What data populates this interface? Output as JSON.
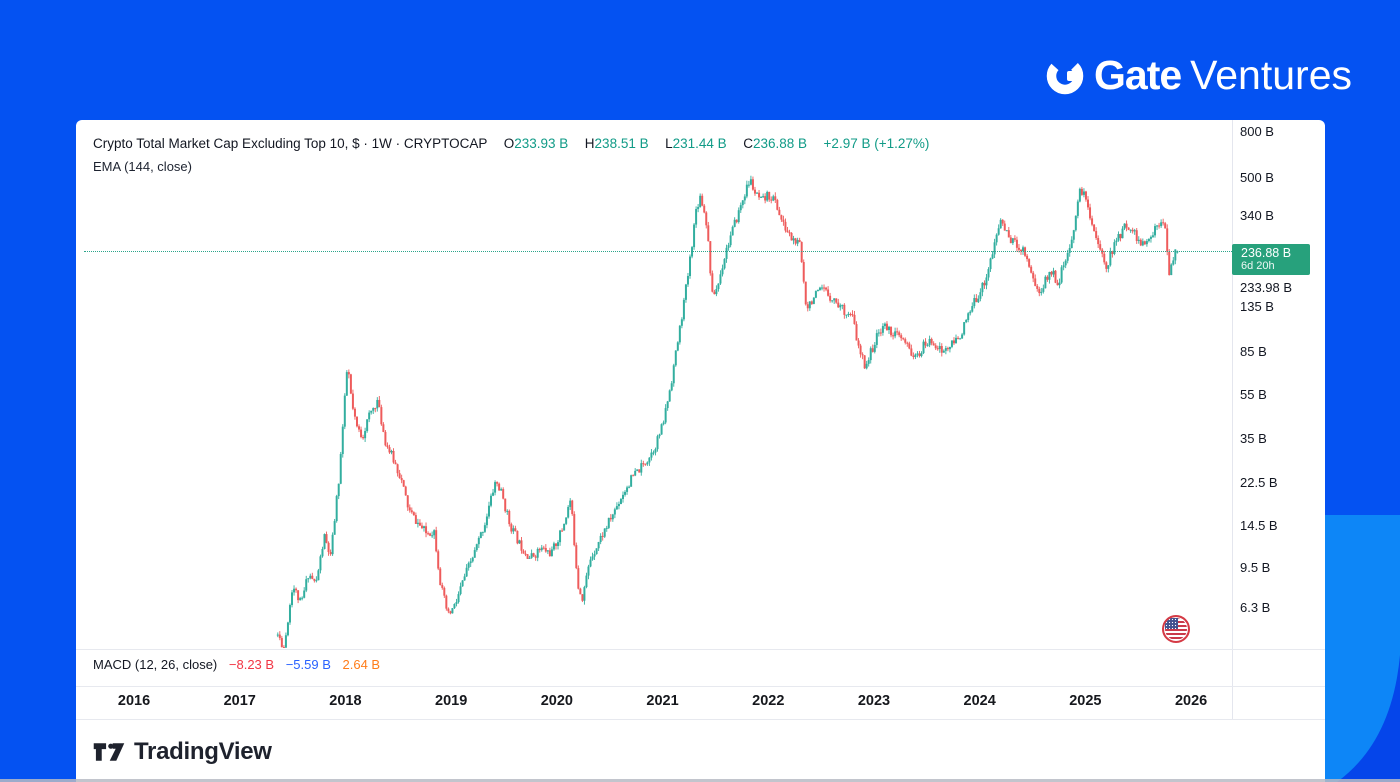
{
  "brand": {
    "bold": "Gate",
    "light": "Ventures"
  },
  "header": {
    "title": "Crypto Total Market Cap Excluding Top 10, $ · 1W · CRYPTOCAP",
    "ohlc": {
      "o_label": "O",
      "o": "233.93 B",
      "h_label": "H",
      "h": "238.51 B",
      "l_label": "L",
      "l": "231.44 B",
      "c_label": "C",
      "c": "236.88 B",
      "change": "+2.97 B (+1.27%)"
    },
    "ema_label": "EMA (144, close)"
  },
  "price_scale": {
    "badge": {
      "price": "236.88 B",
      "countdown": "6d 20h",
      "color": "#27a17c"
    },
    "ema_value": "233.98 B"
  },
  "macd": {
    "label": "MACD (12, 26, close)",
    "v1": "−8.23 B",
    "v1_color": "#f23645",
    "v2": "−5.59 B",
    "v2_color": "#2962ff",
    "v3": "2.64 B",
    "v3_color": "#ff7d1a"
  },
  "footer": {
    "logo_text": "TradingView"
  },
  "colors": {
    "up": "#32ae9f",
    "down": "#ee5b5b",
    "value_text": "#119b87",
    "bg_blue": "#0452f2",
    "bg_light_blue": "#0d86f7"
  },
  "chart_data": {
    "type": "candlestick",
    "title": "Crypto Total Market Cap Excluding Top 10",
    "symbol": "CRYPTOCAP",
    "timeframe": "1W",
    "currency": "$",
    "y_scale": "log",
    "grid": false,
    "ylim_billions": [
      4.15,
      900
    ],
    "xlim_years": [
      2015.451,
      2026.387
    ],
    "x_ticks": [
      "2016",
      "2017",
      "2018",
      "2019",
      "2020",
      "2021",
      "2022",
      "2023",
      "2024",
      "2025",
      "2026"
    ],
    "y_ticks": [
      {
        "label": "800 B",
        "v": 800
      },
      {
        "label": "500 B",
        "v": 500
      },
      {
        "label": "340 B",
        "v": 340
      },
      {
        "label": "135 B",
        "v": 135
      },
      {
        "label": "85 B",
        "v": 85
      },
      {
        "label": "55 B",
        "v": 55
      },
      {
        "label": "35 B",
        "v": 35
      },
      {
        "label": "22.5 B",
        "v": 22.5
      },
      {
        "label": "14.5 B",
        "v": 14.5
      },
      {
        "label": "9.5 B",
        "v": 9.5
      },
      {
        "label": "6.3 B",
        "v": 6.3
      }
    ],
    "last_bar": {
      "open": 233.93,
      "high": 238.51,
      "low": 231.44,
      "close": 236.88,
      "change_b": 2.97,
      "change_pct": 1.27
    },
    "last_price": 236.88,
    "ema_144_value": 233.98,
    "macd_values_b": [
      -8.23,
      -5.59,
      2.64
    ],
    "series_range_years": [
      2017.36,
      2025.87
    ],
    "seed": 11,
    "noise_sigma_log10": 0.021,
    "anchors_year_valueB": [
      [
        2017.36,
        4.8
      ],
      [
        2017.42,
        4.2
      ],
      [
        2017.5,
        8.0
      ],
      [
        2017.58,
        6.5
      ],
      [
        2017.65,
        9.0
      ],
      [
        2017.72,
        8.0
      ],
      [
        2017.8,
        13
      ],
      [
        2017.86,
        10.5
      ],
      [
        2017.94,
        24
      ],
      [
        2018.02,
        76
      ],
      [
        2018.06,
        50
      ],
      [
        2018.1,
        40
      ],
      [
        2018.16,
        36
      ],
      [
        2018.22,
        44
      ],
      [
        2018.3,
        52
      ],
      [
        2018.38,
        34
      ],
      [
        2018.46,
        28
      ],
      [
        2018.52,
        24
      ],
      [
        2018.6,
        17
      ],
      [
        2018.68,
        15
      ],
      [
        2018.76,
        13.5
      ],
      [
        2018.84,
        13.8
      ],
      [
        2018.9,
        8.0
      ],
      [
        2018.97,
        5.8
      ],
      [
        2019.04,
        6.5
      ],
      [
        2019.12,
        8.5
      ],
      [
        2019.22,
        11
      ],
      [
        2019.32,
        15
      ],
      [
        2019.42,
        23
      ],
      [
        2019.48,
        20
      ],
      [
        2019.55,
        15
      ],
      [
        2019.65,
        12
      ],
      [
        2019.75,
        10.5
      ],
      [
        2019.85,
        11.5
      ],
      [
        2019.95,
        11
      ],
      [
        2020.05,
        14
      ],
      [
        2020.13,
        19
      ],
      [
        2020.2,
        8.0
      ],
      [
        2020.24,
        7.0
      ],
      [
        2020.32,
        10.5
      ],
      [
        2020.42,
        13
      ],
      [
        2020.52,
        16
      ],
      [
        2020.62,
        20
      ],
      [
        2020.72,
        24
      ],
      [
        2020.82,
        27
      ],
      [
        2020.92,
        32
      ],
      [
        2021.0,
        40
      ],
      [
        2021.08,
        62
      ],
      [
        2021.16,
        105
      ],
      [
        2021.24,
        185
      ],
      [
        2021.32,
        370
      ],
      [
        2021.36,
        420
      ],
      [
        2021.42,
        310
      ],
      [
        2021.47,
        150
      ],
      [
        2021.52,
        165
      ],
      [
        2021.6,
        240
      ],
      [
        2021.7,
        330
      ],
      [
        2021.78,
        430
      ],
      [
        2021.83,
        490
      ],
      [
        2021.88,
        420
      ],
      [
        2021.94,
        390
      ],
      [
        2022.0,
        420
      ],
      [
        2022.06,
        400
      ],
      [
        2022.14,
        310
      ],
      [
        2022.22,
        270
      ],
      [
        2022.3,
        250
      ],
      [
        2022.36,
        135
      ],
      [
        2022.44,
        150
      ],
      [
        2022.52,
        160
      ],
      [
        2022.62,
        145
      ],
      [
        2022.72,
        130
      ],
      [
        2022.8,
        120
      ],
      [
        2022.86,
        85
      ],
      [
        2022.92,
        74
      ],
      [
        2023.0,
        92
      ],
      [
        2023.08,
        112
      ],
      [
        2023.16,
        105
      ],
      [
        2023.25,
        98
      ],
      [
        2023.33,
        88
      ],
      [
        2023.4,
        79
      ],
      [
        2023.48,
        92
      ],
      [
        2023.56,
        95
      ],
      [
        2023.64,
        85
      ],
      [
        2023.72,
        90
      ],
      [
        2023.8,
        98
      ],
      [
        2023.88,
        118
      ],
      [
        2023.96,
        145
      ],
      [
        2024.04,
        170
      ],
      [
        2024.12,
        230
      ],
      [
        2024.2,
        330
      ],
      [
        2024.26,
        280
      ],
      [
        2024.34,
        255
      ],
      [
        2024.42,
        240
      ],
      [
        2024.5,
        185
      ],
      [
        2024.56,
        152
      ],
      [
        2024.62,
        175
      ],
      [
        2024.68,
        195
      ],
      [
        2024.74,
        172
      ],
      [
        2024.8,
        208
      ],
      [
        2024.86,
        240
      ],
      [
        2024.92,
        380
      ],
      [
        2024.96,
        450
      ],
      [
        2025.02,
        380
      ],
      [
        2025.08,
        300
      ],
      [
        2025.14,
        235
      ],
      [
        2025.2,
        205
      ],
      [
        2025.28,
        255
      ],
      [
        2025.36,
        300
      ],
      [
        2025.42,
        310
      ],
      [
        2025.48,
        275
      ],
      [
        2025.54,
        250
      ],
      [
        2025.6,
        262
      ],
      [
        2025.66,
        300
      ],
      [
        2025.72,
        335
      ],
      [
        2025.76,
        310
      ],
      [
        2025.79,
        175
      ],
      [
        2025.83,
        225
      ],
      [
        2025.87,
        236.88
      ]
    ]
  }
}
